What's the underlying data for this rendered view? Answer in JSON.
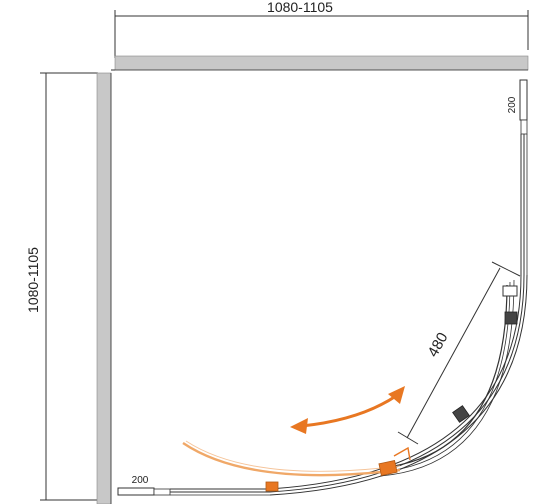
{
  "dimensions": {
    "width_label": "1080-1105",
    "height_label": "1080-1105",
    "door_opening": "480",
    "top_panel_offset": "200",
    "bottom_panel_offset": "200"
  },
  "colors": {
    "wall": "#c8c8c8",
    "line": "#333333",
    "arrow": "#e87722",
    "door": "#f0a868",
    "fitting": "#e87722"
  },
  "icons": {
    "swing_arrow": "double-headed-curved-arrow"
  }
}
